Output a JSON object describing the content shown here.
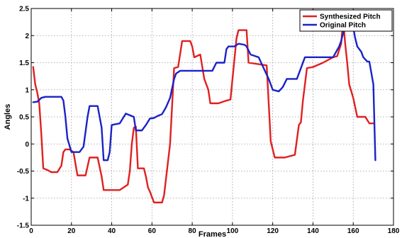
{
  "chart_data": {
    "type": "line",
    "title": "",
    "xlabel": "Frames",
    "ylabel": "Angles",
    "xlim": [
      0,
      180
    ],
    "ylim": [
      -1.5,
      2.5
    ],
    "x_ticks": [
      0,
      20,
      40,
      60,
      80,
      100,
      120,
      140,
      160,
      180
    ],
    "y_ticks": [
      -1.5,
      -1,
      -0.5,
      0,
      0.5,
      1,
      1.5,
      2,
      2.5
    ],
    "x_tick_labels": [
      "0",
      "20",
      "40",
      "60",
      "80",
      "100",
      "120",
      "140",
      "160",
      "180"
    ],
    "y_tick_labels": [
      "-1.5",
      "-1",
      "-0.5",
      "0",
      "0.5",
      "1",
      "1.5",
      "2",
      "2.5"
    ],
    "grid": true,
    "legend_position": "top-right",
    "series": [
      {
        "name": "Synthesized Pitch",
        "color": "#e02020",
        "points": [
          [
            1,
            1.42
          ],
          [
            2,
            1.1
          ],
          [
            3,
            0.95
          ],
          [
            4,
            0.75
          ],
          [
            5,
            0.2
          ],
          [
            6,
            -0.45
          ],
          [
            8,
            -0.48
          ],
          [
            10,
            -0.52
          ],
          [
            13,
            -0.52
          ],
          [
            15,
            -0.4
          ],
          [
            16,
            -0.15
          ],
          [
            17,
            -0.1
          ],
          [
            19,
            -0.1
          ],
          [
            21,
            -0.15
          ],
          [
            23,
            -0.58
          ],
          [
            27,
            -0.58
          ],
          [
            29,
            -0.25
          ],
          [
            33,
            -0.25
          ],
          [
            35,
            -0.6
          ],
          [
            36,
            -0.85
          ],
          [
            44,
            -0.85
          ],
          [
            48,
            -0.75
          ],
          [
            49,
            -0.5
          ],
          [
            50,
            0.0
          ],
          [
            51,
            0.3
          ],
          [
            52,
            0.32
          ],
          [
            53,
            -0.45
          ],
          [
            56,
            -0.45
          ],
          [
            57,
            -0.6
          ],
          [
            58,
            -0.8
          ],
          [
            59,
            -0.88
          ],
          [
            61,
            -1.08
          ],
          [
            65,
            -1.08
          ],
          [
            66,
            -0.95
          ],
          [
            69,
            0.0
          ],
          [
            71,
            1.4
          ],
          [
            73,
            1.42
          ],
          [
            75,
            1.9
          ],
          [
            79,
            1.9
          ],
          [
            80,
            1.8
          ],
          [
            81,
            1.6
          ],
          [
            84,
            1.65
          ],
          [
            86,
            1.2
          ],
          [
            88,
            1.0
          ],
          [
            89,
            0.75
          ],
          [
            93,
            0.75
          ],
          [
            97,
            0.8
          ],
          [
            99,
            0.82
          ],
          [
            102,
            1.95
          ],
          [
            103,
            2.1
          ],
          [
            107,
            2.1
          ],
          [
            108,
            1.5
          ],
          [
            117,
            1.45
          ],
          [
            119,
            0.05
          ],
          [
            121,
            -0.25
          ],
          [
            126,
            -0.25
          ],
          [
            131,
            -0.2
          ],
          [
            133,
            0.35
          ],
          [
            134,
            0.4
          ],
          [
            135,
            0.8
          ],
          [
            137,
            1.4
          ],
          [
            140,
            1.42
          ],
          [
            145,
            1.5
          ],
          [
            150,
            1.6
          ],
          [
            152,
            1.62
          ],
          [
            154,
            1.85
          ],
          [
            155,
            2.3
          ],
          [
            156,
            1.85
          ],
          [
            157,
            1.5
          ],
          [
            158,
            1.1
          ],
          [
            160,
            0.85
          ],
          [
            162,
            0.5
          ],
          [
            166,
            0.5
          ],
          [
            168,
            0.38
          ],
          [
            170,
            0.38
          ]
        ]
      },
      {
        "name": "Original Pitch",
        "color": "#1a22c8",
        "points": [
          [
            1,
            0.77
          ],
          [
            3,
            0.78
          ],
          [
            5,
            0.85
          ],
          [
            7,
            0.87
          ],
          [
            15,
            0.87
          ],
          [
            16,
            0.8
          ],
          [
            17,
            0.5
          ],
          [
            18,
            0.1
          ],
          [
            20,
            -0.15
          ],
          [
            24,
            -0.15
          ],
          [
            26,
            -0.05
          ],
          [
            28,
            0.5
          ],
          [
            29,
            0.7
          ],
          [
            33,
            0.7
          ],
          [
            35,
            0.3
          ],
          [
            36,
            -0.3
          ],
          [
            38,
            -0.3
          ],
          [
            39,
            -0.15
          ],
          [
            40,
            0.35
          ],
          [
            44,
            0.38
          ],
          [
            46,
            0.5
          ],
          [
            47,
            0.56
          ],
          [
            51,
            0.5
          ],
          [
            52,
            0.25
          ],
          [
            55,
            0.25
          ],
          [
            57,
            0.35
          ],
          [
            59,
            0.47
          ],
          [
            61,
            0.48
          ],
          [
            63,
            0.52
          ],
          [
            65,
            0.55
          ],
          [
            67,
            0.68
          ],
          [
            69,
            0.85
          ],
          [
            71,
            1.2
          ],
          [
            72,
            1.3
          ],
          [
            74,
            1.35
          ],
          [
            90,
            1.35
          ],
          [
            92,
            1.5
          ],
          [
            96,
            1.5
          ],
          [
            97,
            1.75
          ],
          [
            98,
            1.8
          ],
          [
            101,
            1.8
          ],
          [
            103,
            1.85
          ],
          [
            106,
            1.83
          ],
          [
            107,
            1.8
          ],
          [
            109,
            1.65
          ],
          [
            113,
            1.6
          ],
          [
            118,
            1.2
          ],
          [
            120,
            1.0
          ],
          [
            123,
            0.97
          ],
          [
            125,
            1.05
          ],
          [
            127,
            1.2
          ],
          [
            132,
            1.2
          ],
          [
            134,
            1.4
          ],
          [
            136,
            1.6
          ],
          [
            150,
            1.6
          ],
          [
            153,
            1.8
          ],
          [
            154,
            1.9
          ],
          [
            155,
            2.05
          ],
          [
            156,
            2.15
          ],
          [
            158,
            2.18
          ],
          [
            159,
            2.25
          ],
          [
            160,
            2.15
          ],
          [
            161,
            1.95
          ],
          [
            162,
            1.8
          ],
          [
            164,
            1.7
          ],
          [
            165,
            1.6
          ],
          [
            167,
            1.52
          ],
          [
            168,
            1.52
          ],
          [
            170,
            1.1
          ],
          [
            171,
            -0.3
          ]
        ]
      }
    ]
  }
}
